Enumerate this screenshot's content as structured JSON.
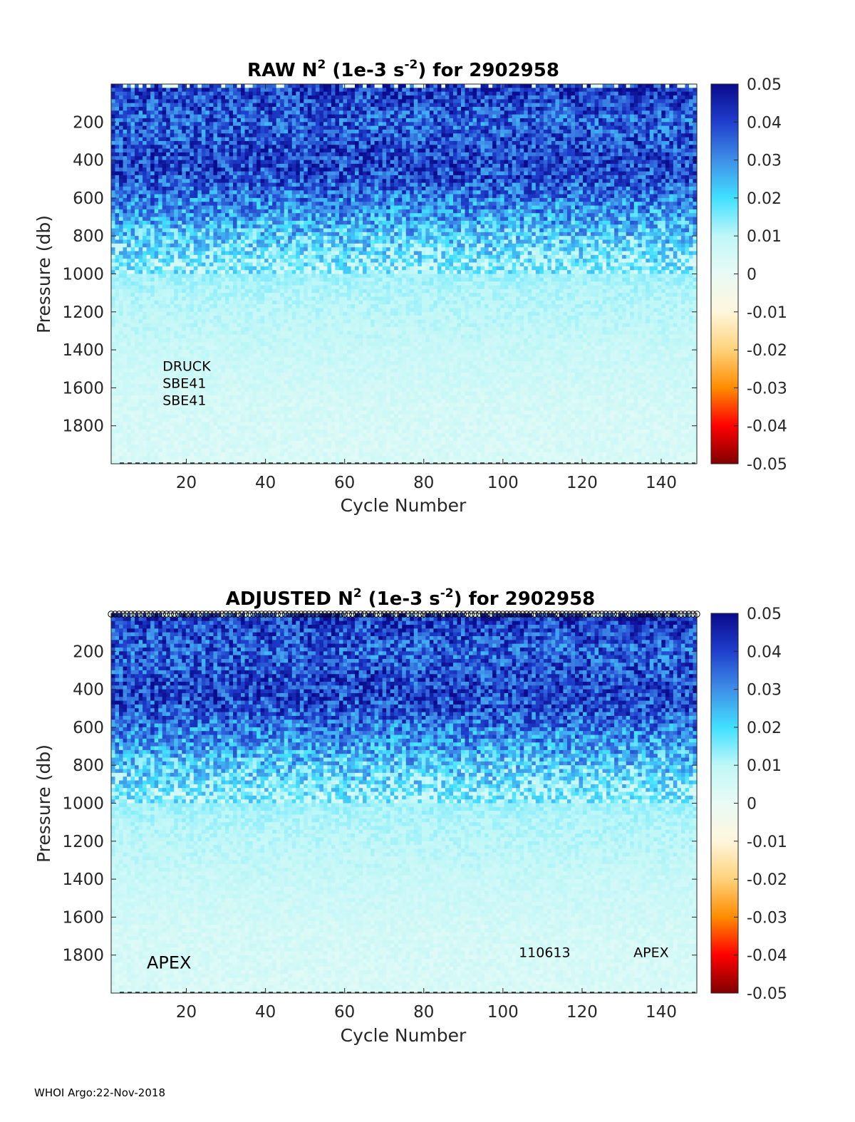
{
  "footer": "WHOI Argo:22-Nov-2018",
  "colormap": {
    "stops": [
      "#800000",
      "#ff0000",
      "#ff8c00",
      "#ffd27a",
      "#fff6dc",
      "#e9fbf6",
      "#bff7f7",
      "#40e0ff",
      "#3f8fe8",
      "#1f3fcc",
      "#0a0a8c"
    ],
    "positive_color": "#0a0a8c",
    "negative_color": "#800000"
  },
  "chart_data": [
    {
      "type": "heatmap",
      "title_parts": {
        "pre": "RAW N",
        "sup1": "2",
        "mid": " (1e-3 s",
        "sup2": "-2",
        "post": ") for 2902958"
      },
      "xlabel": "Cycle Number",
      "ylabel": "Pressure (db)",
      "xlim": [
        1,
        149
      ],
      "ylim": [
        2000,
        0
      ],
      "xticks": [
        20,
        40,
        60,
        80,
        100,
        120,
        140
      ],
      "yticks": [
        200,
        400,
        600,
        800,
        1000,
        1200,
        1400,
        1600,
        1800
      ],
      "colorbar": {
        "min": -0.05,
        "max": 0.05,
        "ticks": [
          "0.05",
          "0.04",
          "0.03",
          "0.02",
          "0.01",
          "0",
          "-0.01",
          "-0.02",
          "-0.03",
          "-0.04",
          "-0.05"
        ]
      },
      "annotations": [
        {
          "text": "DRUCK",
          "x": 14,
          "y": 1510
        },
        {
          "text": "SBE41",
          "x": 14,
          "y": 1600
        },
        {
          "text": "SBE41",
          "x": 14,
          "y": 1690
        }
      ],
      "profile_shape": [
        {
          "p": 0,
          "v": 0.042
        },
        {
          "p": 200,
          "v": 0.036
        },
        {
          "p": 400,
          "v": 0.04
        },
        {
          "p": 500,
          "v": 0.038
        },
        {
          "p": 650,
          "v": 0.03
        },
        {
          "p": 800,
          "v": 0.022
        },
        {
          "p": 950,
          "v": 0.014
        },
        {
          "p": 1100,
          "v": 0.011
        },
        {
          "p": 1300,
          "v": 0.009
        },
        {
          "p": 1500,
          "v": 0.007
        },
        {
          "p": 1700,
          "v": 0.005
        },
        {
          "p": 2000,
          "v": 0.004
        }
      ]
    },
    {
      "type": "heatmap",
      "title_parts": {
        "pre": "ADJUSTED N",
        "sup1": "2",
        "mid": " (1e-3 s",
        "sup2": "-2",
        "post": ") for 2902958"
      },
      "xlabel": "Cycle Number",
      "ylabel": "Pressure (db)",
      "xlim": [
        1,
        149
      ],
      "ylim": [
        2000,
        0
      ],
      "xticks": [
        20,
        40,
        60,
        80,
        100,
        120,
        140
      ],
      "yticks": [
        200,
        400,
        600,
        800,
        1000,
        1200,
        1400,
        1600,
        1800
      ],
      "colorbar": {
        "min": -0.05,
        "max": 0.05,
        "ticks": [
          "0.05",
          "0.04",
          "0.03",
          "0.02",
          "0.01",
          "0",
          "-0.01",
          "-0.02",
          "-0.03",
          "-0.04",
          "-0.05"
        ]
      },
      "annotations": [
        {
          "text": "APEX",
          "x": 10,
          "y": 1870
        },
        {
          "text": "110613",
          "x": 104,
          "y": 1810
        },
        {
          "text": "APEX",
          "x": 133,
          "y": 1810
        }
      ],
      "top_markers": "circles",
      "profile_shape": [
        {
          "p": 0,
          "v": 0.042
        },
        {
          "p": 200,
          "v": 0.036
        },
        {
          "p": 400,
          "v": 0.04
        },
        {
          "p": 500,
          "v": 0.038
        },
        {
          "p": 650,
          "v": 0.03
        },
        {
          "p": 800,
          "v": 0.022
        },
        {
          "p": 950,
          "v": 0.014
        },
        {
          "p": 1100,
          "v": 0.011
        },
        {
          "p": 1300,
          "v": 0.009
        },
        {
          "p": 1500,
          "v": 0.007
        },
        {
          "p": 1700,
          "v": 0.005
        },
        {
          "p": 2000,
          "v": 0.004
        }
      ]
    }
  ]
}
